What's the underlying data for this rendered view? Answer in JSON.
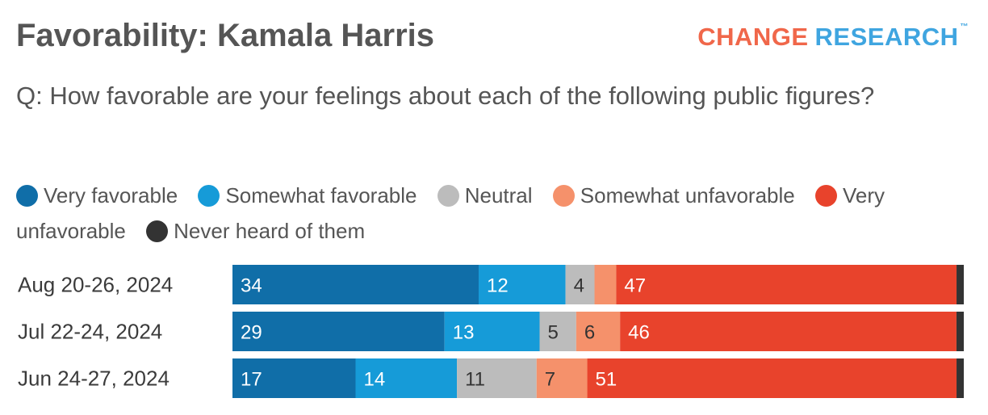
{
  "header": {
    "title": "Favorability: Kamala Harris",
    "logo": {
      "word1": "CHANGE",
      "word2": "RESEARCH",
      "tm": "™"
    },
    "question": "Q: How favorable are your feelings about each of the following public figures?"
  },
  "legend": [
    {
      "label": "Very favorable",
      "color": "#106ea8"
    },
    {
      "label": "Somewhat favorable",
      "color": "#169bd8"
    },
    {
      "label": "Neutral",
      "color": "#bcbcbc"
    },
    {
      "label": "Somewhat unfavorable",
      "color": "#f5916b"
    },
    {
      "label": "Very unfavorable",
      "color": "#e8432c"
    },
    {
      "label": "Never heard of them",
      "color": "#333333"
    }
  ],
  "chart_data": {
    "type": "bar",
    "orientation": "horizontal",
    "stacked": true,
    "categories": [
      "Aug 20-26, 2024",
      "Jul 22-24, 2024",
      "Jun 24-27, 2024"
    ],
    "series": [
      {
        "name": "Very favorable",
        "values": [
          34,
          29,
          17
        ],
        "label_color": "#ffffff"
      },
      {
        "name": "Somewhat favorable",
        "values": [
          12,
          13,
          14
        ],
        "label_color": "#ffffff"
      },
      {
        "name": "Neutral",
        "values": [
          4,
          5,
          11
        ],
        "label_color": "#333333"
      },
      {
        "name": "Somewhat unfavorable",
        "values": [
          3,
          6,
          7
        ],
        "label_color": "#333333"
      },
      {
        "name": "Very unfavorable",
        "values": [
          47,
          46,
          51
        ],
        "label_color": "#ffffff"
      },
      {
        "name": "Never heard of them",
        "values": [
          1,
          1,
          1
        ],
        "label_color": "#ffffff"
      }
    ],
    "data_labels": [
      [
        "34",
        "12",
        "4",
        "",
        "47",
        ""
      ],
      [
        "29",
        "13",
        "5",
        "6",
        "46",
        ""
      ],
      [
        "17",
        "14",
        "11",
        "7",
        "51",
        ""
      ]
    ],
    "xlim": [
      0,
      100
    ],
    "grid": false,
    "legend_position": "top"
  }
}
